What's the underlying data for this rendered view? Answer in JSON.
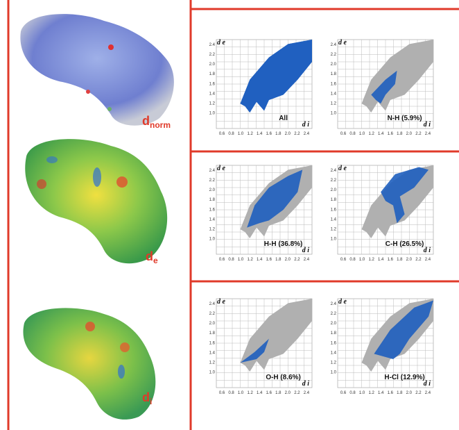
{
  "surfaces": [
    {
      "main": "d",
      "sub": "norm"
    },
    {
      "main": "d",
      "sub": "e"
    },
    {
      "main": "d",
      "sub": "i"
    }
  ],
  "axis": {
    "y_label": "d e",
    "x_label": "d i",
    "y_ticks": [
      "1.0",
      "1.2",
      "1.4",
      "1.6",
      "1.8",
      "2.0",
      "2.2",
      "2.4"
    ],
    "x_ticks": [
      "0.6",
      "0.8",
      "1.0",
      "1.2",
      "1.4",
      "1.6",
      "1.8",
      "2.0",
      "2.2",
      "2.4"
    ]
  },
  "plots": [
    {
      "label": "All"
    },
    {
      "label": "N-H (5.9%)"
    },
    {
      "label": "H-H (36.8%)"
    },
    {
      "label": "C-H (26.5%)"
    },
    {
      "label": "O-H (8.6%)"
    },
    {
      "label": "H-Cl (12.9%)"
    }
  ]
}
